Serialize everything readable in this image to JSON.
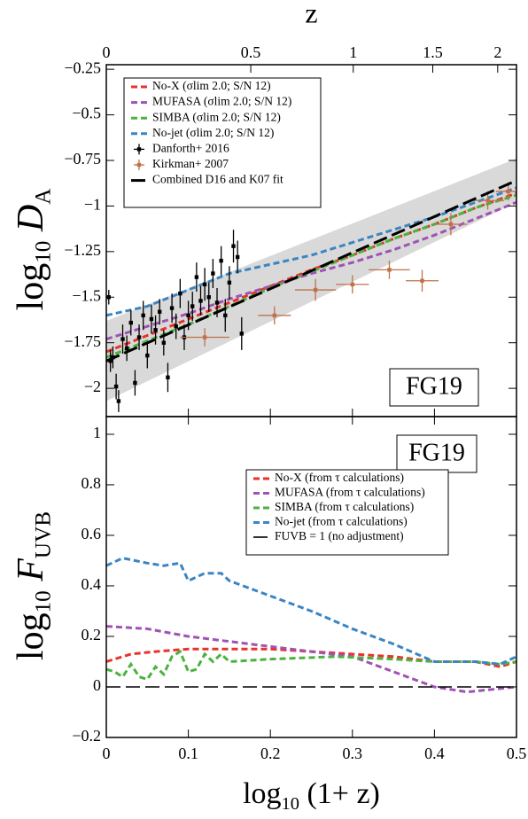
{
  "chart_data": [
    {
      "type": "line",
      "x2label": "z",
      "ylabel": [
        "log",
        "10",
        "D",
        "A"
      ],
      "annotation": "FG19",
      "xlim": [
        0,
        0.5
      ],
      "ylim": [
        -2.155,
        -0.225
      ],
      "xticks": [
        0,
        0.1,
        0.2,
        0.3,
        0.4,
        0.5
      ],
      "xtick_labels": false,
      "x2_scale": "log10(1+z)",
      "x2ticks": [
        0,
        0.5,
        1,
        1.5,
        2
      ],
      "yticks": [
        {
          "value": -0.25,
          "label": "−0.25"
        },
        {
          "value": -0.5,
          "label": "−0.5"
        },
        {
          "value": -0.75,
          "label": "−0.75"
        },
        {
          "value": -1,
          "label": "−1"
        },
        {
          "value": -1.25,
          "label": "−1.25"
        },
        {
          "value": -1.5,
          "label": "−1.5"
        },
        {
          "value": -1.75,
          "label": "−1.75"
        },
        {
          "value": -2,
          "label": "−2"
        }
      ],
      "band": {
        "color": "#d9d9d9",
        "x": [
          0,
          0.5
        ],
        "lower": [
          -2.07,
          -0.98
        ],
        "upper": [
          -1.63,
          -0.74
        ]
      },
      "series": [
        {
          "name": "No-X (σlim 2.0; S/N 12)",
          "kind": "line",
          "color": "#e8322b",
          "x": [
            0,
            0.05,
            0.1,
            0.15,
            0.2,
            0.25,
            0.3,
            0.35,
            0.4,
            0.45,
            0.5
          ],
          "values": [
            -1.8,
            -1.71,
            -1.62,
            -1.53,
            -1.44,
            -1.35,
            -1.27,
            -1.18,
            -1.1,
            -1.01,
            -0.93
          ]
        },
        {
          "name": "MUFASA (σlim 2.0; S/N 12)",
          "kind": "line",
          "color": "#a052b4",
          "x": [
            0,
            0.05,
            0.1,
            0.15,
            0.2,
            0.25,
            0.3,
            0.35,
            0.4,
            0.45,
            0.5
          ],
          "values": [
            -1.73,
            -1.66,
            -1.59,
            -1.51,
            -1.44,
            -1.37,
            -1.31,
            -1.24,
            -1.16,
            -1.07,
            -0.98
          ]
        },
        {
          "name": "SIMBA (σlim 2.0; S/N 12)",
          "kind": "line",
          "color": "#4ab33e",
          "x": [
            0,
            0.05,
            0.1,
            0.15,
            0.2,
            0.25,
            0.3,
            0.35,
            0.4,
            0.45,
            0.5
          ],
          "values": [
            -1.83,
            -1.74,
            -1.65,
            -1.55,
            -1.45,
            -1.36,
            -1.27,
            -1.18,
            -1.1,
            -1.01,
            -0.94
          ]
        },
        {
          "name": "No-jet (σlim 2.0; S/N 12)",
          "kind": "line",
          "color": "#3a85c3",
          "x": [
            0,
            0.05,
            0.1,
            0.15,
            0.2,
            0.25,
            0.3,
            0.35,
            0.4,
            0.45,
            0.5
          ],
          "values": [
            -1.6,
            -1.55,
            -1.46,
            -1.37,
            -1.32,
            -1.27,
            -1.2,
            -1.13,
            -1.06,
            -0.98,
            -0.9
          ]
        },
        {
          "name": "Danforth+ 2016",
          "kind": "errorbar",
          "color": "#000000",
          "x": [
            0.003,
            0.005,
            0.008,
            0.012,
            0.015,
            0.02,
            0.025,
            0.03,
            0.035,
            0.04,
            0.045,
            0.05,
            0.055,
            0.06,
            0.065,
            0.07,
            0.075,
            0.08,
            0.085,
            0.09,
            0.095,
            0.1,
            0.105,
            0.11,
            0.115,
            0.12,
            0.125,
            0.13,
            0.135,
            0.14,
            0.145,
            0.15,
            0.155,
            0.16,
            0.165
          ],
          "values": [
            -1.5,
            -1.85,
            -1.83,
            -1.99,
            -2.07,
            -1.73,
            -1.78,
            -1.64,
            -1.97,
            -1.72,
            -1.6,
            -1.82,
            -1.62,
            -1.68,
            -1.58,
            -1.75,
            -1.94,
            -1.56,
            -1.66,
            -1.48,
            -1.72,
            -1.6,
            -1.55,
            -1.39,
            -1.52,
            -1.43,
            -1.5,
            -1.37,
            -1.53,
            -1.3,
            -1.6,
            -1.42,
            -1.22,
            -1.28,
            -1.7
          ],
          "yerr": [
            0.04,
            0.06,
            0.06,
            0.07,
            0.06,
            0.08,
            0.07,
            0.07,
            0.07,
            0.07,
            0.08,
            0.07,
            0.08,
            0.08,
            0.07,
            0.07,
            0.08,
            0.08,
            0.07,
            0.08,
            0.07,
            0.08,
            0.08,
            0.08,
            0.08,
            0.09,
            0.08,
            0.08,
            0.08,
            0.08,
            0.09,
            0.09,
            0.09,
            0.09,
            0.09
          ]
        },
        {
          "name": "Kirkman+ 2007",
          "kind": "errorbar",
          "color": "#c0704a",
          "x": [
            0.12,
            0.205,
            0.255,
            0.3,
            0.345,
            0.385,
            0.42,
            0.465,
            0.49
          ],
          "xerr": [
            0.03,
            0.02,
            0.025,
            0.02,
            0.025,
            0.02,
            0.02,
            0.02,
            0.015
          ],
          "values": [
            -1.72,
            -1.6,
            -1.46,
            -1.43,
            -1.35,
            -1.41,
            -1.1,
            -0.97,
            -0.92
          ],
          "yerr": [
            0.05,
            0.05,
            0.06,
            0.05,
            0.05,
            0.06,
            0.06,
            0.05,
            0.05
          ]
        },
        {
          "name": "Combined D16 and K07 fit",
          "kind": "line",
          "style": "longdash",
          "color": "#000000",
          "x": [
            0,
            0.5
          ],
          "values": [
            -1.85,
            -0.86
          ]
        }
      ]
    },
    {
      "type": "line",
      "xlabel": [
        "log",
        "10",
        "(1+ z)"
      ],
      "ylabel": [
        "log",
        "10",
        "F",
        "UVB"
      ],
      "annotation": "FG19",
      "xlim": [
        0,
        0.5
      ],
      "ylim": [
        -0.2,
        1.07
      ],
      "xticks": [
        0,
        0.1,
        0.2,
        0.3,
        0.4,
        0.5
      ],
      "xtick_labels": true,
      "yticks": [
        {
          "value": -0.2,
          "label": "−0.2"
        },
        0,
        0.2,
        0.4,
        0.6,
        0.8,
        1
      ],
      "series": [
        {
          "name": "No-X (from τ calculations)",
          "kind": "line",
          "color": "#e8322b",
          "x": [
            0,
            0.03,
            0.06,
            0.1,
            0.15,
            0.2,
            0.25,
            0.3,
            0.35,
            0.4,
            0.45,
            0.48,
            0.5
          ],
          "values": [
            0.1,
            0.13,
            0.14,
            0.15,
            0.15,
            0.15,
            0.14,
            0.13,
            0.12,
            0.1,
            0.1,
            0.08,
            0.1
          ]
        },
        {
          "name": "MUFASA (from τ calculations)",
          "kind": "line",
          "color": "#a052b4",
          "x": [
            0,
            0.05,
            0.1,
            0.15,
            0.2,
            0.25,
            0.3,
            0.35,
            0.4,
            0.44,
            0.5
          ],
          "values": [
            0.24,
            0.23,
            0.2,
            0.18,
            0.16,
            0.14,
            0.12,
            0.06,
            0,
            -0.02,
            0
          ]
        },
        {
          "name": "SIMBA (from τ calculations)",
          "kind": "line",
          "color": "#4ab33e",
          "x": [
            0,
            0.01,
            0.02,
            0.03,
            0.04,
            0.05,
            0.06,
            0.07,
            0.08,
            0.09,
            0.1,
            0.11,
            0.12,
            0.13,
            0.14,
            0.15,
            0.2,
            0.28,
            0.35,
            0.4,
            0.45,
            0.48,
            0.5
          ],
          "values": [
            0.07,
            0.06,
            0.04,
            0.09,
            0.04,
            0.03,
            0.08,
            0.05,
            0.12,
            0.14,
            0.06,
            0.07,
            0.13,
            0.1,
            0.13,
            0.1,
            0.11,
            0.12,
            0.11,
            0.1,
            0.1,
            0.09,
            0.1
          ]
        },
        {
          "name": "No-jet (from τ calculations)",
          "kind": "line",
          "color": "#3a85c3",
          "x": [
            0,
            0.02,
            0.05,
            0.07,
            0.09,
            0.1,
            0.12,
            0.14,
            0.15,
            0.2,
            0.25,
            0.3,
            0.35,
            0.4,
            0.45,
            0.48,
            0.5
          ],
          "values": [
            0.48,
            0.51,
            0.49,
            0.48,
            0.49,
            0.42,
            0.45,
            0.45,
            0.42,
            0.36,
            0.3,
            0.23,
            0.17,
            0.1,
            0.1,
            0.09,
            0.12
          ]
        },
        {
          "name": "FUVB = 1 (no adjustment)",
          "kind": "line",
          "style": "longdash-thin",
          "color": "#000000",
          "x": [
            0,
            0.5
          ],
          "values": [
            0,
            0
          ]
        }
      ]
    }
  ]
}
